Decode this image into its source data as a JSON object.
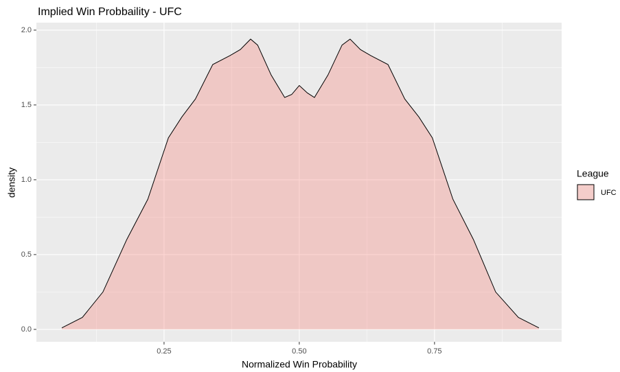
{
  "chart_data": {
    "type": "area",
    "title": "Implied Win Probbaility - UFC",
    "x_label": "Normalized Win Probability",
    "y_label": "density",
    "legend_title": "League",
    "legend": "right",
    "grid": true,
    "xlim": [
      0.014,
      0.985
    ],
    "ylim": [
      -0.083,
      2.05
    ],
    "xticks": [
      {
        "value": 0.25,
        "label": "0.25"
      },
      {
        "value": 0.5,
        "label": "0.50"
      },
      {
        "value": 0.75,
        "label": "0.75"
      }
    ],
    "yticks": [
      {
        "value": 0,
        "label": "0.0"
      },
      0.5,
      {
        "value": 1,
        "label": "1.0"
      },
      1.5,
      {
        "value": 2,
        "label": "2.0"
      }
    ],
    "alpha": 0.3,
    "series": [
      {
        "name": "UFC",
        "color": "#F8766D",
        "x": [
          0.061,
          0.099,
          0.137,
          0.181,
          0.22,
          0.258,
          0.283,
          0.308,
          0.34,
          0.372,
          0.391,
          0.41,
          0.423,
          0.448,
          0.473,
          0.486,
          0.5,
          0.515,
          0.528,
          0.553,
          0.579,
          0.594,
          0.613,
          0.632,
          0.664,
          0.695,
          0.721,
          0.746,
          0.784,
          0.822,
          0.863,
          0.905,
          0.943
        ],
        "values": [
          0.01,
          0.08,
          0.25,
          0.6,
          0.87,
          1.28,
          1.42,
          1.54,
          1.77,
          1.83,
          1.87,
          1.94,
          1.9,
          1.7,
          1.55,
          1.57,
          1.63,
          1.58,
          1.55,
          1.7,
          1.9,
          1.94,
          1.87,
          1.83,
          1.77,
          1.54,
          1.42,
          1.28,
          0.87,
          0.6,
          0.25,
          0.08,
          0.01
        ]
      }
    ]
  }
}
